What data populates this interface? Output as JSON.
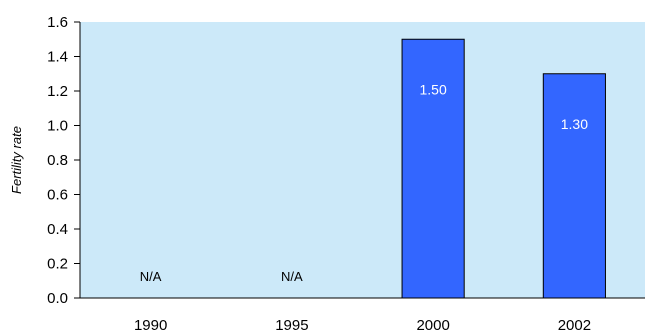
{
  "chart_data": {
    "type": "bar",
    "categories": [
      "1990",
      "1995",
      "2000",
      "2002"
    ],
    "values": [
      null,
      null,
      1.5,
      1.3
    ],
    "value_labels": [
      "N/A",
      "N/A",
      "1.50",
      "1.30"
    ],
    "ylabel": "Fertility rate",
    "ylim": [
      0,
      1.6
    ],
    "yticks": [
      "0.0",
      "0.2",
      "0.4",
      "0.6",
      "0.8",
      "1.0",
      "1.2",
      "1.4",
      "1.6"
    ],
    "grid": false,
    "legend": "none",
    "colors": {
      "plot_background": "#cce9f9",
      "bar_fill": "#3366ff",
      "bar_stroke": "#000000",
      "bar_label": "#ffffff"
    }
  }
}
